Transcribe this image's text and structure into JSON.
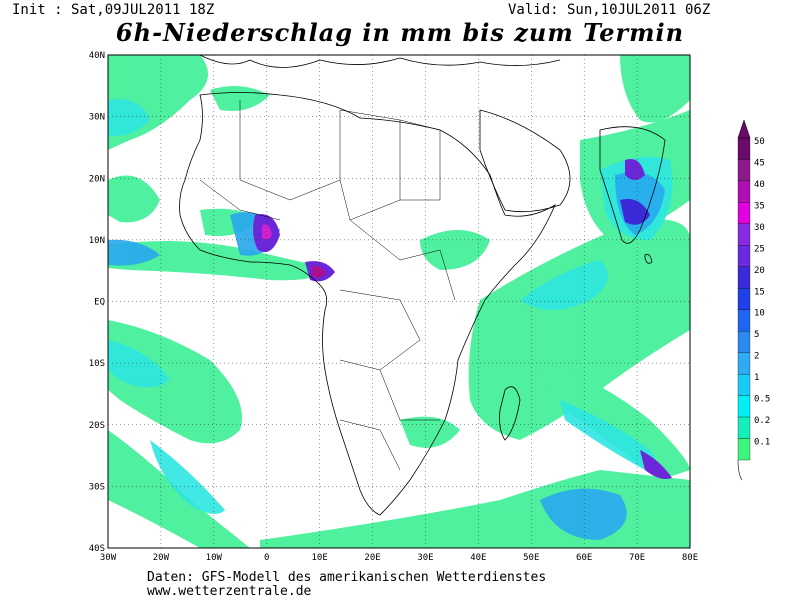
{
  "header": {
    "init": "Init : Sat,09JUL2011 18Z",
    "valid": "Valid: Sun,10JUL2011 06Z",
    "title": "6h-Niederschlag in mm bis zum Termin"
  },
  "footer": {
    "line1": "Daten: GFS-Modell des amerikanischen Wetterdienstes",
    "line2": "www.wetterzentrale.de"
  },
  "map": {
    "lon_labels": [
      "30W",
      "20W",
      "10W",
      "0",
      "10E",
      "20E",
      "30E",
      "40E",
      "50E",
      "60E",
      "70E",
      "80E"
    ],
    "lat_labels": [
      "40N",
      "30N",
      "20N",
      "10N",
      "EQ",
      "10S",
      "20S",
      "30S",
      "40S"
    ]
  },
  "colorbar": {
    "labels": [
      "50",
      "45",
      "40",
      "35",
      "30",
      "25",
      "20",
      "15",
      "10",
      "5",
      "2",
      "1",
      "0.5",
      "0.2",
      "0.1"
    ],
    "colors": [
      "#6a0a6a",
      "#8c1a8c",
      "#b20fb2",
      "#e000e0",
      "#8a2be2",
      "#6a2ae0",
      "#3a2ad8",
      "#2040e8",
      "#1e66f2",
      "#2a8af0",
      "#30aaf2",
      "#16ccf4",
      "#00eef4",
      "#14eebb",
      "#3cf57a"
    ]
  },
  "colors": {
    "light_green": "#46f09a",
    "cyan": "#2ee6e0",
    "light_blue": "#28a8ee",
    "blue": "#2060f0",
    "purple": "#6a28d8",
    "magenta": "#d020d0"
  }
}
